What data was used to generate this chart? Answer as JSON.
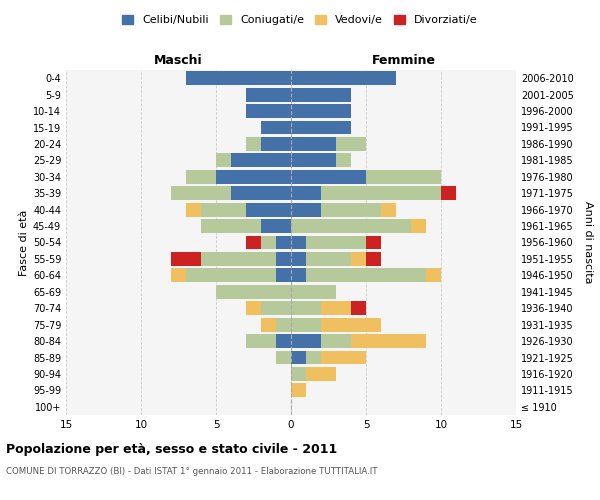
{
  "age_groups": [
    "100+",
    "95-99",
    "90-94",
    "85-89",
    "80-84",
    "75-79",
    "70-74",
    "65-69",
    "60-64",
    "55-59",
    "50-54",
    "45-49",
    "40-44",
    "35-39",
    "30-34",
    "25-29",
    "20-24",
    "15-19",
    "10-14",
    "5-9",
    "0-4"
  ],
  "birth_years": [
    "≤ 1910",
    "1911-1915",
    "1916-1920",
    "1921-1925",
    "1926-1930",
    "1931-1935",
    "1936-1940",
    "1941-1945",
    "1946-1950",
    "1951-1955",
    "1956-1960",
    "1961-1965",
    "1966-1970",
    "1971-1975",
    "1976-1980",
    "1981-1985",
    "1986-1990",
    "1991-1995",
    "1996-2000",
    "2001-2005",
    "2006-2010"
  ],
  "male": {
    "celibi": [
      0,
      0,
      0,
      0,
      1,
      0,
      0,
      0,
      1,
      1,
      1,
      2,
      3,
      4,
      5,
      4,
      2,
      2,
      3,
      3,
      7
    ],
    "coniugati": [
      0,
      0,
      0,
      1,
      2,
      1,
      2,
      5,
      6,
      5,
      1,
      4,
      3,
      4,
      2,
      1,
      1,
      0,
      0,
      0,
      0
    ],
    "vedovi": [
      0,
      0,
      0,
      0,
      0,
      1,
      1,
      0,
      1,
      0,
      0,
      0,
      1,
      0,
      0,
      0,
      0,
      0,
      0,
      0,
      0
    ],
    "divorziati": [
      0,
      0,
      0,
      0,
      0,
      0,
      0,
      0,
      0,
      2,
      1,
      0,
      0,
      0,
      0,
      0,
      0,
      0,
      0,
      0,
      0
    ]
  },
  "female": {
    "nubili": [
      0,
      0,
      0,
      1,
      2,
      0,
      0,
      0,
      1,
      1,
      1,
      0,
      2,
      2,
      5,
      3,
      3,
      4,
      4,
      4,
      7
    ],
    "coniugate": [
      0,
      0,
      1,
      1,
      2,
      2,
      2,
      3,
      8,
      3,
      4,
      8,
      4,
      8,
      5,
      1,
      2,
      0,
      0,
      0,
      0
    ],
    "vedove": [
      0,
      1,
      2,
      3,
      5,
      4,
      2,
      0,
      1,
      1,
      0,
      1,
      1,
      0,
      0,
      0,
      0,
      0,
      0,
      0,
      0
    ],
    "divorziate": [
      0,
      0,
      0,
      0,
      0,
      0,
      1,
      0,
      0,
      1,
      1,
      0,
      0,
      1,
      0,
      0,
      0,
      0,
      0,
      0,
      0
    ]
  },
  "colors": {
    "celibi": "#4472a8",
    "coniugati": "#b5c99a",
    "vedovi": "#f0c060",
    "divorziati": "#cc2222"
  },
  "xlim": 15,
  "title": "Popolazione per età, sesso e stato civile - 2011",
  "subtitle": "COMUNE DI TORRAZZO (BI) - Dati ISTAT 1° gennaio 2011 - Elaborazione TUTTITALIA.IT",
  "xlabel_left": "Maschi",
  "xlabel_right": "Femmine",
  "ylabel_left": "Fasce di età",
  "ylabel_right": "Anni di nascita",
  "legend_labels": [
    "Celibi/Nubili",
    "Coniugati/e",
    "Vedovi/e",
    "Divorziati/e"
  ],
  "background_color": "#ffffff",
  "bar_height": 0.85
}
